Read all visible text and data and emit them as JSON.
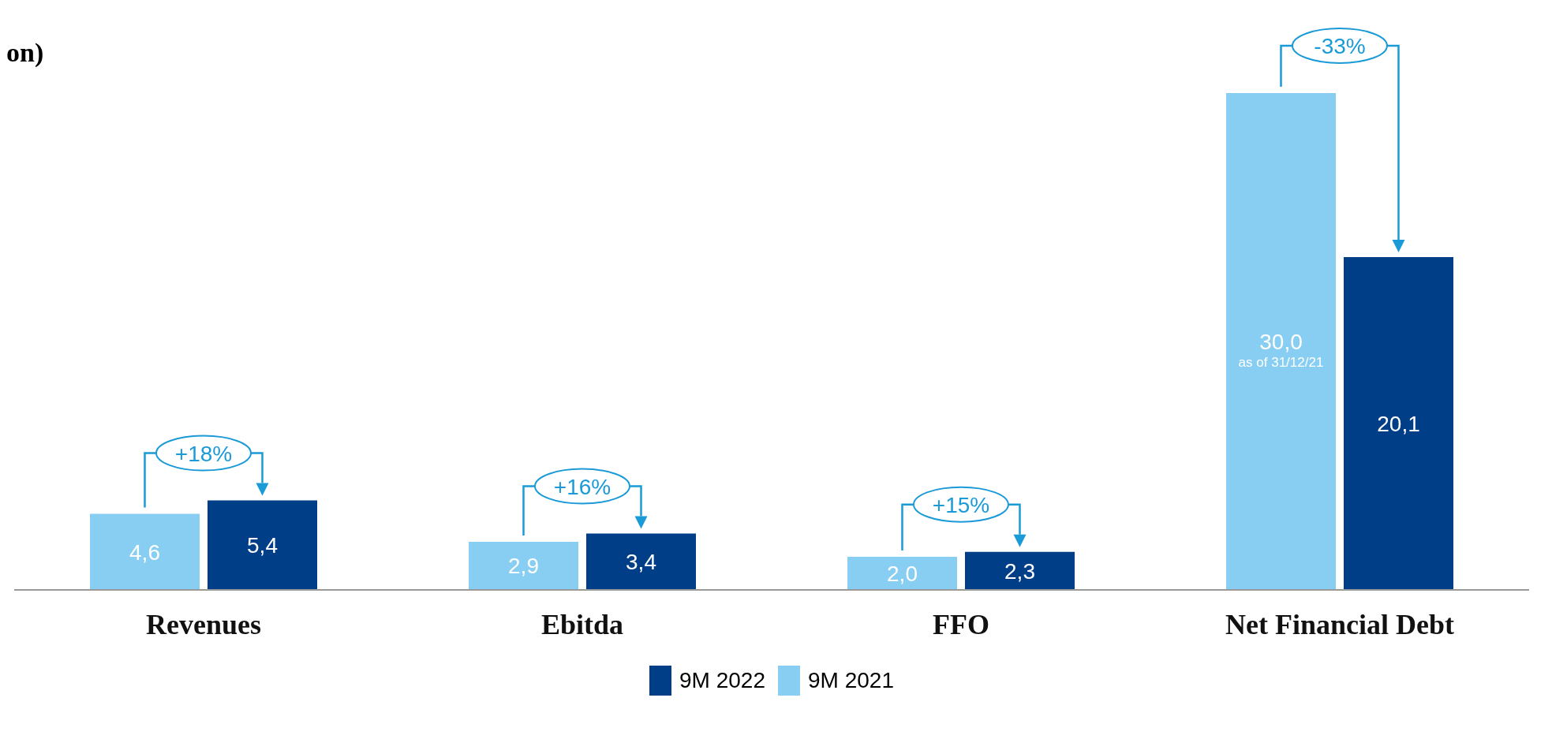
{
  "chart_data": {
    "type": "bar",
    "title": "on)",
    "categories": [
      "Revenues",
      "Ebitda",
      "FFO",
      "Net Financial Debt"
    ],
    "series": [
      {
        "name": "9M 2021",
        "color": "#87cef2",
        "values": [
          4.6,
          2.9,
          2.0,
          30.0
        ],
        "value_labels": [
          "4,6",
          "2,9",
          "2,0",
          "30,0"
        ]
      },
      {
        "name": "9M 2022",
        "color": "#003f87",
        "values": [
          5.4,
          3.4,
          2.3,
          20.1
        ],
        "value_labels": [
          "5,4",
          "3,4",
          "2,3",
          "20,1"
        ]
      }
    ],
    "annotations": [
      "+18%",
      "+16%",
      "+15%",
      "-33%",
      "as of 31/12/21"
    ],
    "legend": "bottom"
  }
}
